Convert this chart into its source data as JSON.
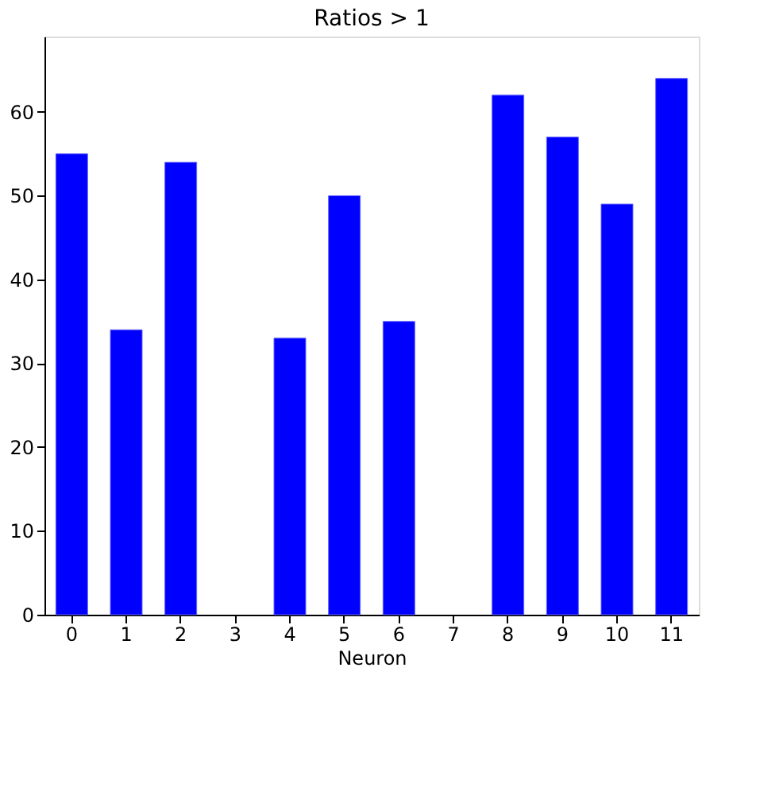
{
  "chart_data": {
    "type": "bar",
    "title": "Ratios > 1",
    "xlabel": "Neuron",
    "categories": [
      "0",
      "1",
      "2",
      "3",
      "4",
      "5",
      "6",
      "7",
      "8",
      "9",
      "10",
      "11"
    ],
    "values": [
      55,
      34,
      54,
      null,
      33,
      50,
      35,
      null,
      62,
      57,
      49,
      64
    ],
    "color": "#0000ff",
    "ylim": [
      0,
      69
    ],
    "yticks": [
      0,
      10,
      20,
      30,
      40,
      50,
      60
    ],
    "grid": false,
    "legend": false
  }
}
